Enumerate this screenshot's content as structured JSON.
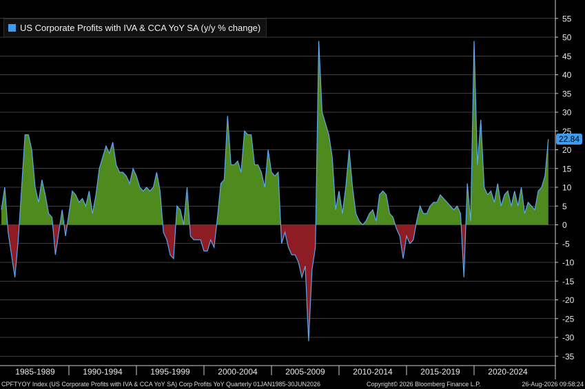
{
  "legend": {
    "label": "US Corporate Profits with IVA & CCA YoY SA  (y/y % change)",
    "color": "#3d9bf0"
  },
  "last_value_label": "22.84",
  "footer": {
    "left": "CPFTYOY Index (US Corporate Profits with IVA & CCA YoY SA) Corp Profits YoY Quarterly 01JAN1985-30JUN2026",
    "center": "Copyright© 2026 Bloomberg Finance L.P.",
    "right": "26-Aug-2026 09:58:24"
  },
  "colors": {
    "positive_fill": "#4e8a1e",
    "negative_fill": "#8e1c24",
    "line": "#5aa7f2",
    "accent": "#3d9bf0"
  },
  "chart_data": {
    "type": "area",
    "title": "US Corporate Profits with IVA & CCA YoY SA  (y/y % change)",
    "frequency": "quarterly",
    "x_start": "1985Q1",
    "x_end": "2026Q2",
    "x_tick_labels": [
      "1985-1989",
      "1990-1994",
      "1995-1999",
      "2000-2004",
      "2005-2009",
      "2010-2014",
      "2015-2019",
      "2020-2024"
    ],
    "ylim": [
      -37,
      60
    ],
    "y_ticks": [
      55,
      50,
      45,
      40,
      35,
      30,
      25,
      20,
      15,
      10,
      5,
      0,
      -5,
      -10,
      -15,
      -20,
      -25,
      -30,
      -35
    ],
    "grid": true,
    "legend_position": "top-left",
    "series": [
      {
        "name": "US Corporate Profits with IVA & CCA YoY SA  (y/y % change)",
        "values": [
          4,
          10,
          -2,
          -8,
          -14,
          -4,
          10,
          24,
          24,
          20,
          10,
          6,
          12,
          8,
          3,
          2,
          -8,
          -2,
          4,
          -3,
          3,
          9,
          8,
          6,
          7,
          5,
          9,
          3,
          8,
          15,
          18,
          21,
          19,
          22,
          16,
          14,
          14,
          13,
          11,
          15,
          13,
          10,
          9,
          10,
          9,
          10,
          14,
          9,
          -2,
          -4,
          -8,
          -9,
          5,
          4,
          0,
          10,
          -3,
          -4,
          -4,
          -4,
          -7,
          -7,
          -4,
          -6,
          2,
          11,
          12,
          29,
          16,
          16,
          17,
          14,
          25,
          24,
          24,
          16,
          16,
          14,
          10,
          20,
          14,
          13,
          14,
          -5,
          -2,
          -6,
          -8,
          -8,
          -10,
          -14,
          -11,
          -31,
          -12,
          -6,
          49,
          30,
          27,
          24,
          18,
          4,
          9,
          3,
          10,
          20,
          10,
          3,
          1,
          0,
          1,
          3,
          4,
          1,
          8,
          9,
          8,
          3,
          2,
          -1,
          -3,
          -9,
          -3,
          -5,
          -4,
          1,
          5,
          3,
          3,
          5,
          6,
          6,
          8,
          7,
          6,
          5,
          4,
          5,
          3,
          -14,
          11,
          1,
          49,
          16,
          28,
          10,
          8,
          9,
          6,
          11,
          5,
          8,
          9,
          5,
          9,
          5,
          10,
          3,
          6,
          5,
          4,
          9,
          10,
          13,
          22.84
        ]
      }
    ]
  }
}
